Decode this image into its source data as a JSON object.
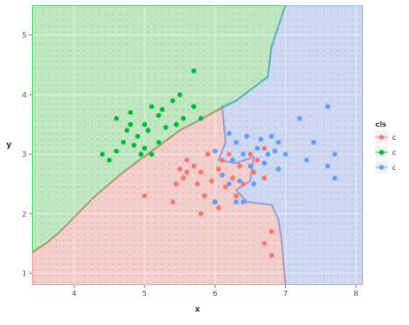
{
  "chart_data": {
    "type": "scatter",
    "title": "",
    "xlabel": "x",
    "ylabel": "y",
    "xlim": [
      3.4,
      8.1
    ],
    "ylim": [
      0.8,
      5.5
    ],
    "xticks": [
      4,
      5,
      6,
      7,
      8
    ],
    "yticks": [
      1,
      2,
      3,
      4,
      5
    ],
    "grid": true,
    "background_grid_dots": true,
    "legend": {
      "title": "cls",
      "position": "right",
      "entries": [
        {
          "label": "c",
          "color": "#f8766d"
        },
        {
          "label": "c",
          "color": "#00ba38"
        },
        {
          "label": "c",
          "color": "#619cff"
        }
      ]
    },
    "regions": [
      {
        "class_index": 1,
        "fill": "#b8e8b8",
        "polygon": [
          [
            3.4,
            5.5
          ],
          [
            7.0,
            5.5
          ],
          [
            6.8,
            4.8
          ],
          [
            6.75,
            4.3
          ],
          [
            6.3,
            3.9
          ],
          [
            5.9,
            3.65
          ],
          [
            5.5,
            3.4
          ],
          [
            5.1,
            3.05
          ],
          [
            4.7,
            2.7
          ],
          [
            4.3,
            2.3
          ],
          [
            3.8,
            1.7
          ],
          [
            3.6,
            1.5
          ],
          [
            3.4,
            1.35
          ]
        ]
      },
      {
        "class_index": 0,
        "fill": "#f5c9c5",
        "polygon": [
          [
            3.6,
            1.5
          ],
          [
            3.8,
            1.7
          ],
          [
            4.3,
            2.3
          ],
          [
            4.7,
            2.7
          ],
          [
            5.1,
            3.05
          ],
          [
            5.5,
            3.4
          ],
          [
            5.9,
            3.65
          ],
          [
            6.1,
            3.8
          ],
          [
            6.15,
            3.2
          ],
          [
            6.05,
            2.9
          ],
          [
            6.3,
            2.85
          ],
          [
            6.55,
            2.95
          ],
          [
            6.5,
            2.55
          ],
          [
            6.3,
            2.4
          ],
          [
            6.45,
            2.2
          ],
          [
            6.8,
            2.15
          ],
          [
            6.9,
            1.9
          ],
          [
            6.95,
            1.5
          ],
          [
            7.0,
            0.8
          ],
          [
            3.4,
            0.8
          ],
          [
            3.4,
            1.35
          ]
        ]
      },
      {
        "class_index": 2,
        "fill": "#c9d5f5",
        "polygon": [
          [
            7.0,
            5.5
          ],
          [
            8.1,
            5.5
          ],
          [
            8.1,
            0.8
          ],
          [
            7.0,
            0.8
          ],
          [
            6.95,
            1.5
          ],
          [
            6.9,
            1.9
          ],
          [
            6.8,
            2.15
          ],
          [
            6.45,
            2.2
          ],
          [
            6.3,
            2.4
          ],
          [
            6.5,
            2.55
          ],
          [
            6.55,
            2.95
          ],
          [
            6.3,
            2.85
          ],
          [
            6.05,
            2.9
          ],
          [
            6.15,
            3.2
          ],
          [
            6.1,
            3.8
          ],
          [
            6.3,
            3.9
          ],
          [
            6.75,
            4.3
          ],
          [
            6.8,
            4.8
          ]
        ]
      }
    ],
    "series": [
      {
        "class_index": 1,
        "color": "#00ba38",
        "points": [
          [
            4.4,
            3.0
          ],
          [
            4.5,
            2.9
          ],
          [
            4.6,
            3.05
          ],
          [
            4.7,
            3.2
          ],
          [
            4.75,
            3.4
          ],
          [
            4.6,
            3.6
          ],
          [
            4.8,
            3.5
          ],
          [
            4.85,
            3.15
          ],
          [
            4.9,
            3.3
          ],
          [
            5.0,
            3.5
          ],
          [
            5.0,
            3.1
          ],
          [
            4.95,
            3.0
          ],
          [
            5.05,
            3.4
          ],
          [
            5.1,
            3.8
          ],
          [
            5.2,
            3.65
          ],
          [
            5.3,
            3.45
          ],
          [
            5.25,
            3.75
          ],
          [
            5.4,
            3.9
          ],
          [
            5.45,
            3.5
          ],
          [
            5.5,
            4.0
          ],
          [
            5.55,
            3.6
          ],
          [
            5.7,
            4.4
          ],
          [
            5.7,
            3.8
          ],
          [
            5.8,
            3.6
          ],
          [
            5.2,
            3.2
          ],
          [
            4.8,
            3.7
          ],
          [
            5.1,
            3.0
          ]
        ]
      },
      {
        "class_index": 0,
        "color": "#f8766d",
        "points": [
          [
            5.0,
            2.3
          ],
          [
            5.45,
            2.5
          ],
          [
            5.5,
            2.75
          ],
          [
            5.55,
            2.6
          ],
          [
            5.6,
            2.9
          ],
          [
            5.6,
            2.7
          ],
          [
            5.7,
            2.8
          ],
          [
            5.75,
            2.5
          ],
          [
            5.8,
            2.7
          ],
          [
            5.85,
            2.3
          ],
          [
            5.9,
            3.0
          ],
          [
            5.95,
            2.55
          ],
          [
            6.0,
            2.2
          ],
          [
            6.05,
            2.75
          ],
          [
            6.1,
            2.9
          ],
          [
            6.15,
            2.45
          ],
          [
            6.2,
            3.0
          ],
          [
            6.25,
            2.6
          ],
          [
            6.3,
            2.3
          ],
          [
            6.35,
            2.8
          ],
          [
            6.4,
            2.5
          ],
          [
            6.5,
            3.0
          ],
          [
            6.55,
            2.7
          ],
          [
            6.6,
            2.9
          ],
          [
            6.7,
            2.6
          ],
          [
            5.4,
            2.2
          ],
          [
            6.7,
            1.5
          ],
          [
            6.8,
            1.3
          ],
          [
            6.8,
            1.7
          ],
          [
            6.7,
            3.1
          ],
          [
            5.8,
            2.0
          ],
          [
            6.05,
            2.1
          ]
        ]
      },
      {
        "class_index": 2,
        "color": "#619cff",
        "points": [
          [
            6.0,
            3.05
          ],
          [
            6.1,
            2.65
          ],
          [
            6.2,
            3.35
          ],
          [
            6.25,
            2.9
          ],
          [
            6.3,
            3.2
          ],
          [
            6.35,
            2.55
          ],
          [
            6.4,
            3.0
          ],
          [
            6.45,
            3.3
          ],
          [
            6.5,
            2.8
          ],
          [
            6.55,
            2.5
          ],
          [
            6.6,
            3.1
          ],
          [
            6.65,
            3.25
          ],
          [
            6.7,
            2.85
          ],
          [
            6.75,
            3.0
          ],
          [
            6.8,
            3.3
          ],
          [
            6.85,
            3.05
          ],
          [
            6.9,
            2.75
          ],
          [
            6.9,
            3.2
          ],
          [
            7.0,
            3.0
          ],
          [
            7.2,
            3.6
          ],
          [
            7.3,
            2.9
          ],
          [
            7.4,
            3.2
          ],
          [
            7.6,
            3.8
          ],
          [
            7.6,
            2.8
          ],
          [
            7.7,
            3.0
          ],
          [
            7.7,
            2.6
          ],
          [
            6.0,
            2.2
          ],
          [
            6.3,
            2.2
          ],
          [
            6.2,
            2.5
          ],
          [
            6.4,
            2.2
          ]
        ]
      }
    ]
  }
}
